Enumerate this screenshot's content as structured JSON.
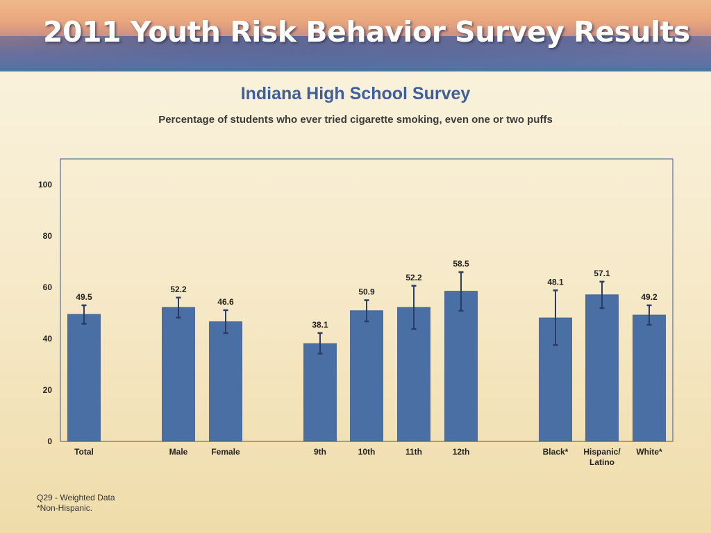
{
  "header": {
    "title": "2011 Youth Risk Behavior Survey Results"
  },
  "chart_data": {
    "type": "bar",
    "title": "Indiana High School Survey",
    "subtitle": "Percentage of students who ever tried cigarette smoking, even one or two puffs",
    "xlabel": "",
    "ylabel": "",
    "ylim": [
      0,
      110
    ],
    "yticks": [
      0,
      20,
      40,
      60,
      80,
      100
    ],
    "grid": false,
    "color": "#4a6fa5",
    "bars": [
      {
        "label": "Total",
        "label2": "",
        "value": 49.5,
        "err_low": 45.8,
        "err_high": 53.0
      },
      {
        "label": "Male",
        "label2": "",
        "value": 52.2,
        "err_low": 48.2,
        "err_high": 56.0
      },
      {
        "label": "Female",
        "label2": "",
        "value": 46.6,
        "err_low": 42.2,
        "err_high": 51.1
      },
      {
        "label": "9th",
        "label2": "",
        "value": 38.1,
        "err_low": 34.2,
        "err_high": 42.2
      },
      {
        "label": "10th",
        "label2": "",
        "value": 50.9,
        "err_low": 46.7,
        "err_high": 55.0
      },
      {
        "label": "11th",
        "label2": "",
        "value": 52.2,
        "err_low": 43.8,
        "err_high": 60.6
      },
      {
        "label": "12th",
        "label2": "",
        "value": 58.5,
        "err_low": 50.9,
        "err_high": 65.9
      },
      {
        "label": "Black*",
        "label2": "",
        "value": 48.1,
        "err_low": 37.5,
        "err_high": 58.8
      },
      {
        "label": "Hispanic/",
        "label2": "Latino",
        "value": 57.1,
        "err_low": 51.9,
        "err_high": 62.2
      },
      {
        "label": "White*",
        "label2": "",
        "value": 49.2,
        "err_low": 45.4,
        "err_high": 53.0
      }
    ]
  },
  "footnotes": [
    "Q29 - Weighted Data",
    "*Non-Hispanic."
  ]
}
